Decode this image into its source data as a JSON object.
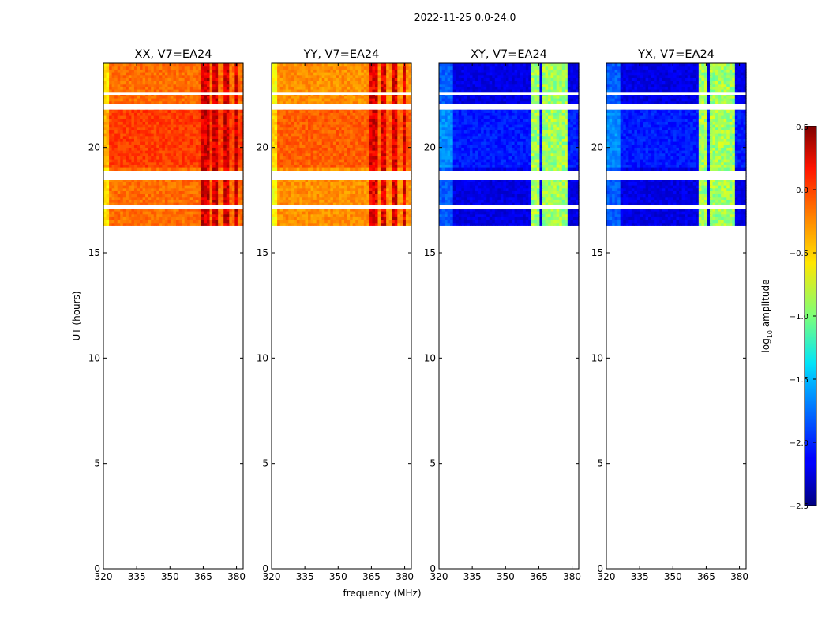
{
  "figure": {
    "suptitle": "2022-11-25 0.0-24.0",
    "ylabel": "UT (hours)",
    "xlabel": "frequency (MHz)",
    "colorbar_label": "log",
    "colorbar_label_sub": "10",
    "colorbar_label_rest": " amplitude"
  },
  "chart_data": {
    "type": "heatmap",
    "colormap": "jet",
    "x_range": [
      320,
      383
    ],
    "y_range": [
      0,
      24
    ],
    "x_ticks": [
      320,
      335,
      350,
      365,
      380
    ],
    "y_ticks": [
      0,
      5,
      10,
      15,
      20
    ],
    "data_time_range_hours": [
      16.3,
      24.0
    ],
    "colorbar": {
      "range": [
        -2.5,
        0.5
      ],
      "ticks": [
        0.5,
        0.0,
        -0.5,
        -1.0,
        -1.5,
        -2.0,
        -2.5
      ]
    },
    "flagged_bands_hours": [
      [
        17.1,
        17.25
      ],
      [
        18.45,
        18.9
      ],
      [
        21.8,
        22.05
      ],
      [
        22.5,
        22.6
      ]
    ],
    "panels": [
      {
        "title": "XX, V7=EA24",
        "pol": "XX",
        "base_level": -0.2,
        "rfi_bands_mhz": [
          [
            364,
            368
          ],
          [
            369,
            372
          ],
          [
            374,
            377
          ],
          [
            379,
            381
          ]
        ],
        "rfi_level": 0.25
      },
      {
        "title": "YY, V7=EA24",
        "pol": "YY",
        "base_level": -0.3,
        "rfi_bands_mhz": [
          [
            364,
            368
          ],
          [
            369,
            372
          ],
          [
            374,
            377
          ],
          [
            379,
            381
          ]
        ],
        "rfi_level": 0.2
      },
      {
        "title": "XY, V7=EA24",
        "pol": "XY",
        "base_level": -2.2,
        "rfi_bands_mhz": [
          [
            361,
            365
          ],
          [
            366,
            370
          ],
          [
            371,
            375
          ],
          [
            376,
            378
          ]
        ],
        "rfi_level": -0.9
      },
      {
        "title": "YX, V7=EA24",
        "pol": "YX",
        "base_level": -2.2,
        "rfi_bands_mhz": [
          [
            361,
            365
          ],
          [
            366,
            370
          ],
          [
            371,
            375
          ],
          [
            376,
            378
          ]
        ],
        "rfi_level": -0.9
      }
    ]
  }
}
